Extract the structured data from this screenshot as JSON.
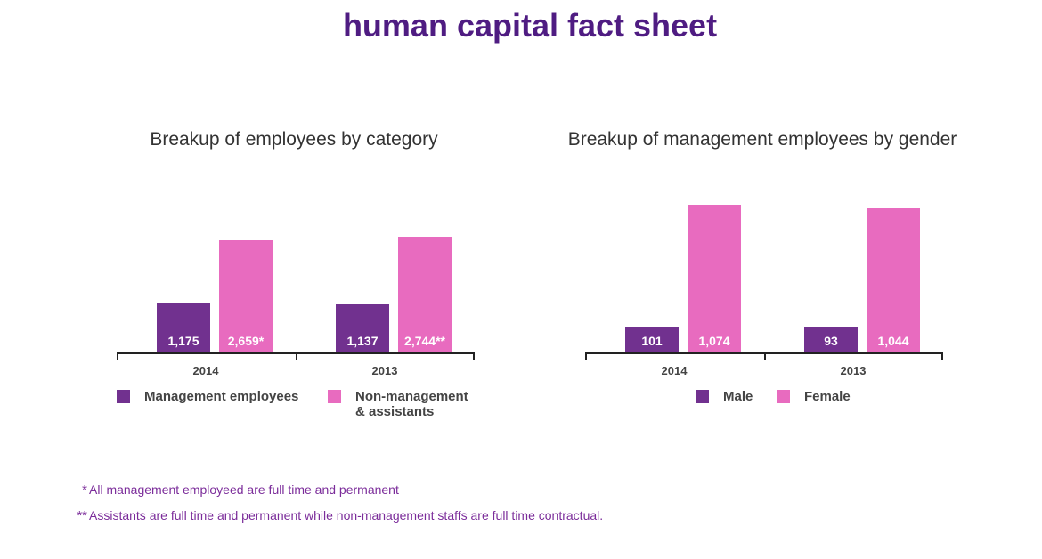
{
  "title": "human capital fact sheet",
  "colors": {
    "primary": "#71318f",
    "secondary": "#e86bbf"
  },
  "chart_data": [
    {
      "type": "bar",
      "title": "Breakup of employees by category",
      "categories": [
        "2014",
        "2013"
      ],
      "series": [
        {
          "name": "Management employees",
          "values": [
            1175,
            1137
          ],
          "labels": [
            "1,175",
            "1,137"
          ]
        },
        {
          "name": "Non-management & assistants",
          "values": [
            2659,
            2744
          ],
          "labels": [
            "2,659*",
            "2,744**"
          ]
        }
      ],
      "legend_lines": [
        [
          "Management employees"
        ],
        [
          "Non-management",
          "& assistants"
        ]
      ],
      "legend": "bottom"
    },
    {
      "type": "bar",
      "title": "Breakup of management employees by gender",
      "categories": [
        "2014",
        "2013"
      ],
      "series": [
        {
          "name": "Male",
          "values": [
            101,
            93
          ],
          "labels": [
            "101",
            "93"
          ]
        },
        {
          "name": "Female",
          "values": [
            1074,
            1044
          ],
          "labels": [
            "1,074",
            "1,044"
          ]
        }
      ],
      "legend_lines": [
        [
          "Male"
        ],
        [
          "Female"
        ]
      ],
      "legend": "bottom"
    }
  ],
  "footnotes": [
    {
      "mark": "*",
      "text": "All management employeed are full time and permanent"
    },
    {
      "mark": "**",
      "text": "Assistants are full time and permanent while non-management staffs are full time contractual."
    }
  ]
}
